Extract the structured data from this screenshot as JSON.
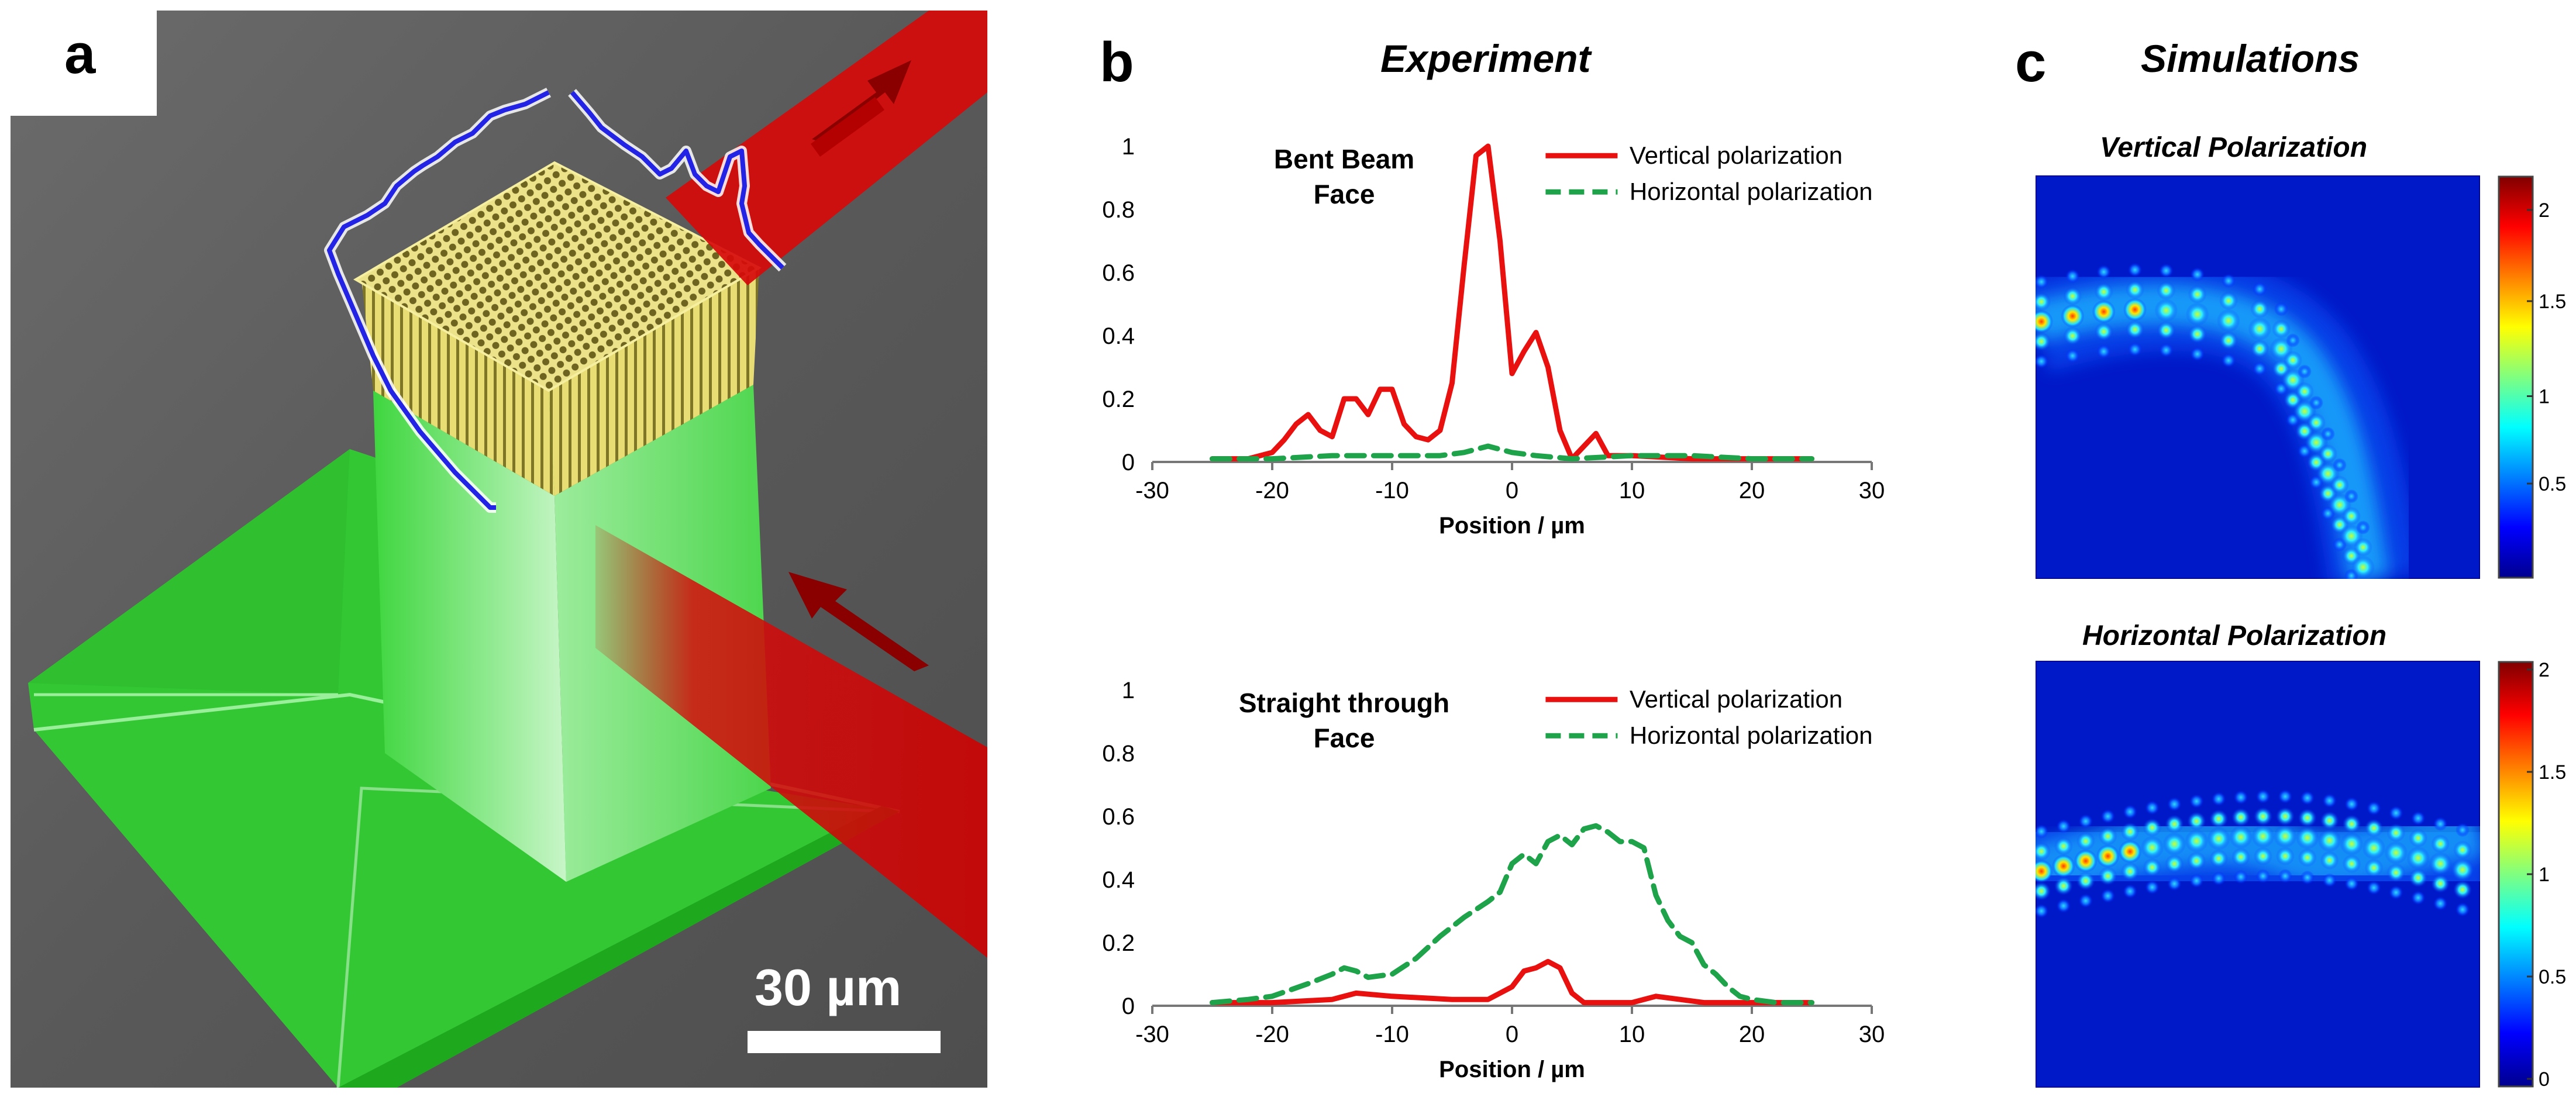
{
  "figure": {
    "panel_a": {
      "label": "a",
      "scale_bar_text": "30 µm",
      "colors": {
        "background": "#5e5e5e",
        "structure": "#2fd12f",
        "crystal": "#d9cc55",
        "beam": "#d40a0a",
        "profile": "#2323e6"
      }
    },
    "panel_b": {
      "label": "b",
      "title": "Experiment",
      "top_plot": {
        "annotation_line1": "Bent Beam",
        "annotation_line2": "Face",
        "xlabel": "Position / µm",
        "legend": [
          "Vertical polarization",
          "Horizontal polarization"
        ]
      },
      "bottom_plot": {
        "annotation_line1": "Straight through",
        "annotation_line2": "Face",
        "xlabel": "Position / µm",
        "legend": [
          "Vertical polarization",
          "Horizontal polarization"
        ]
      }
    },
    "panel_c": {
      "label": "c",
      "title": "Simulations",
      "top_map": {
        "title": "Vertical Polarization",
        "colorbar_ticks": [
          "2",
          "1.5",
          "1",
          "0.5"
        ]
      },
      "bottom_map": {
        "title": "Horizontal Polarization",
        "colorbar_ticks": [
          "2",
          "1.5",
          "1",
          "0.5",
          "0"
        ]
      }
    }
  },
  "chart_data": [
    {
      "type": "line",
      "title": "Bent Beam Face",
      "xlabel": "Position / µm",
      "ylabel": "",
      "xlim": [
        -30,
        30
      ],
      "ylim": [
        0,
        1
      ],
      "x_ticks": [
        -30,
        -20,
        -10,
        0,
        10,
        20,
        30
      ],
      "y_ticks": [
        0,
        0.2,
        0.4,
        0.6,
        0.8,
        1
      ],
      "series": [
        {
          "name": "Vertical polarization",
          "color": "#e8110f",
          "style": "solid",
          "x": [
            -25,
            -22,
            -20,
            -19,
            -18,
            -17,
            -16,
            -15,
            -14,
            -13,
            -12,
            -11,
            -10,
            -9,
            -8,
            -7,
            -6,
            -5,
            -4,
            -3,
            -2,
            -1,
            0,
            1,
            2,
            3,
            4,
            5,
            6,
            7,
            8,
            10,
            15,
            20,
            25
          ],
          "y": [
            0.01,
            0.01,
            0.03,
            0.07,
            0.12,
            0.15,
            0.1,
            0.08,
            0.2,
            0.2,
            0.15,
            0.23,
            0.23,
            0.12,
            0.08,
            0.07,
            0.1,
            0.25,
            0.62,
            0.97,
            1.0,
            0.7,
            0.28,
            0.35,
            0.41,
            0.3,
            0.1,
            0.01,
            0.05,
            0.09,
            0.02,
            0.02,
            0.01,
            0.01,
            0.01
          ]
        },
        {
          "name": "Horizontal polarization",
          "color": "#1ea34a",
          "style": "dashed",
          "x": [
            -25,
            -20,
            -15,
            -10,
            -6,
            -4,
            -3,
            -2,
            0,
            2,
            5,
            10,
            15,
            20,
            25
          ],
          "y": [
            0.01,
            0.01,
            0.02,
            0.02,
            0.02,
            0.03,
            0.04,
            0.05,
            0.03,
            0.02,
            0.01,
            0.02,
            0.02,
            0.01,
            0.01
          ]
        }
      ]
    },
    {
      "type": "line",
      "title": "Straight through Face",
      "xlabel": "Position / µm",
      "ylabel": "",
      "xlim": [
        -30,
        30
      ],
      "ylim": [
        0,
        1
      ],
      "x_ticks": [
        -30,
        -20,
        -10,
        0,
        10,
        20,
        30
      ],
      "y_ticks": [
        0,
        0.2,
        0.4,
        0.6,
        0.8,
        1
      ],
      "series": [
        {
          "name": "Vertical polarization",
          "color": "#e8110f",
          "style": "solid",
          "x": [
            -25,
            -20,
            -15,
            -13,
            -10,
            -5,
            -2,
            0,
            1,
            2,
            3,
            4,
            5,
            6,
            8,
            10,
            12,
            14,
            16,
            20,
            25
          ],
          "y": [
            0.01,
            0.01,
            0.02,
            0.04,
            0.03,
            0.02,
            0.02,
            0.06,
            0.11,
            0.12,
            0.14,
            0.12,
            0.04,
            0.01,
            0.01,
            0.01,
            0.03,
            0.02,
            0.01,
            0.01,
            0.01
          ]
        },
        {
          "name": "Horizontal polarization",
          "color": "#1ea34a",
          "style": "dashed",
          "x": [
            -25,
            -22,
            -20,
            -17,
            -15,
            -14,
            -13,
            -12,
            -10,
            -8,
            -6,
            -4,
            -2,
            -1,
            0,
            1,
            2,
            3,
            4,
            5,
            6,
            7,
            8,
            9,
            10,
            11,
            12,
            13,
            14,
            15,
            16,
            17,
            18,
            19,
            20,
            22,
            25
          ],
          "y": [
            0.01,
            0.02,
            0.03,
            0.07,
            0.1,
            0.12,
            0.11,
            0.09,
            0.1,
            0.15,
            0.22,
            0.28,
            0.33,
            0.36,
            0.45,
            0.48,
            0.45,
            0.52,
            0.54,
            0.51,
            0.56,
            0.57,
            0.55,
            0.52,
            0.52,
            0.5,
            0.35,
            0.27,
            0.22,
            0.2,
            0.13,
            0.1,
            0.06,
            0.03,
            0.02,
            0.01,
            0.01
          ]
        }
      ]
    }
  ]
}
